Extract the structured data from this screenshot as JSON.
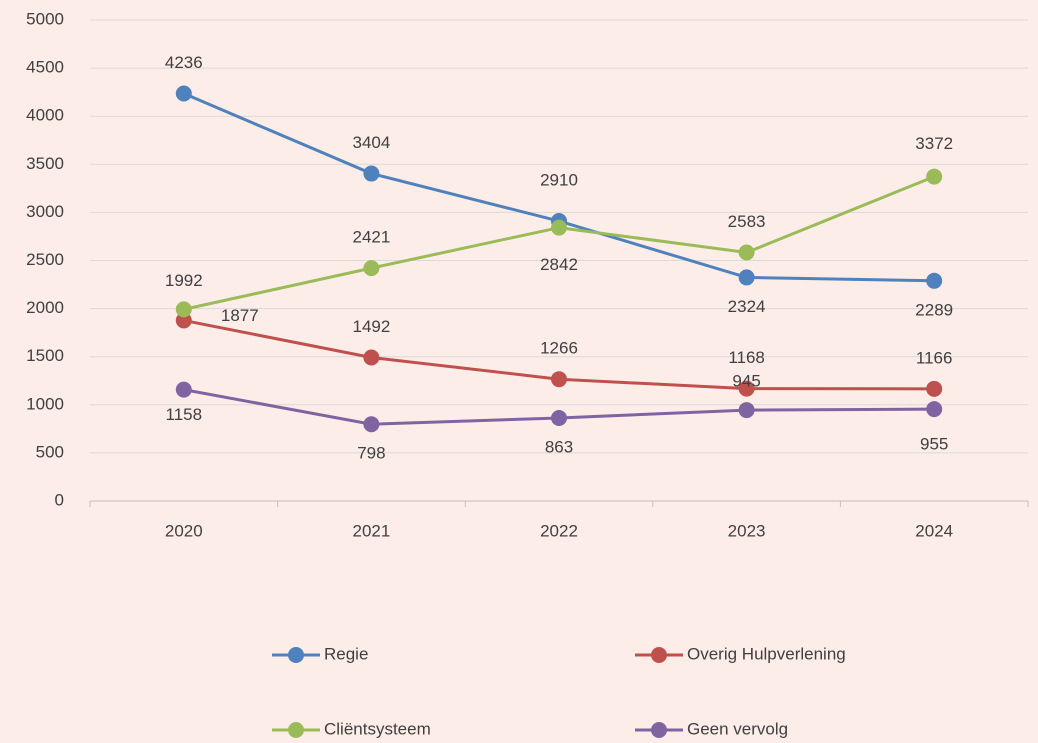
{
  "chart_data": {
    "type": "line",
    "categories": [
      "2020",
      "2021",
      "2022",
      "2023",
      "2024"
    ],
    "series": [
      {
        "name": "Regie",
        "color": "#4f81bd",
        "values": [
          4236,
          3404,
          2910,
          2324,
          2289
        ]
      },
      {
        "name": "Overig Hulpverlening",
        "color": "#c0504d",
        "values": [
          1877,
          1492,
          1266,
          1168,
          1166
        ]
      },
      {
        "name": "Cliëntsysteem",
        "color": "#9bbb59",
        "values": [
          1992,
          2421,
          2842,
          2583,
          3372
        ]
      },
      {
        "name": "Geen vervolg",
        "color": "#8064a2",
        "values": [
          1158,
          798,
          863,
          945,
          955
        ]
      }
    ],
    "ylim": [
      0,
      5000
    ],
    "yticks": [
      0,
      500,
      1000,
      1500,
      2000,
      2500,
      3000,
      3500,
      4000,
      4500,
      5000
    ],
    "grid": true,
    "legend": "bottom"
  }
}
